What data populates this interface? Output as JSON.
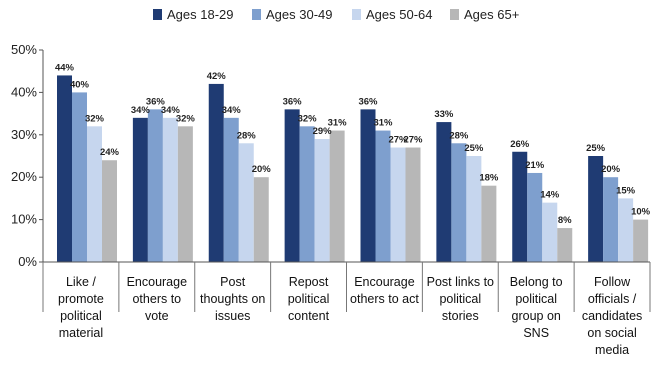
{
  "chart_data": {
    "type": "bar",
    "categories": [
      [
        "Like /",
        "promote",
        "political",
        "material"
      ],
      [
        "Encourage",
        "others to",
        "vote"
      ],
      [
        "Post",
        "thoughts on",
        "issues"
      ],
      [
        "Repost",
        "political",
        "content"
      ],
      [
        "Encourage",
        "others to act"
      ],
      [
        "Post links to",
        "political",
        "stories"
      ],
      [
        "Belong to",
        "political",
        "group on",
        "SNS"
      ],
      [
        "Follow",
        "officials /",
        "candidates",
        "on social",
        "media"
      ]
    ],
    "series": [
      {
        "name": "Ages 18-29",
        "color": "#1f3b73",
        "values": [
          44,
          34,
          42,
          36,
          36,
          33,
          26,
          25
        ]
      },
      {
        "name": "Ages 30-49",
        "color": "#7e9fce",
        "values": [
          40,
          36,
          34,
          32,
          31,
          28,
          21,
          20
        ]
      },
      {
        "name": "Ages 50-64",
        "color": "#c6d6ee",
        "values": [
          32,
          34,
          28,
          29,
          27,
          25,
          14,
          15
        ]
      },
      {
        "name": "Ages 65+",
        "color": "#b7b7b7",
        "values": [
          24,
          32,
          20,
          31,
          27,
          18,
          8,
          10
        ]
      }
    ],
    "data_labels": [
      [
        "44%",
        "34%",
        "42%",
        "36%",
        "36%",
        "33%",
        "26%",
        "25%"
      ],
      [
        "40%",
        "36%",
        "34%",
        "32%",
        "31%",
        "28%",
        "21%",
        "20%"
      ],
      [
        "32%",
        "34%",
        "28%",
        "29%",
        "27%",
        "25%",
        "14%",
        "15%"
      ],
      [
        "24%",
        "32%",
        "20%",
        "31%",
        "27%",
        "18%",
        "8%",
        "10%"
      ]
    ],
    "yticks": [
      "0%",
      "10%",
      "20%",
      "30%",
      "40%",
      "50%"
    ],
    "ylim": [
      0,
      50
    ],
    "grid": false,
    "legend_position": "top"
  }
}
